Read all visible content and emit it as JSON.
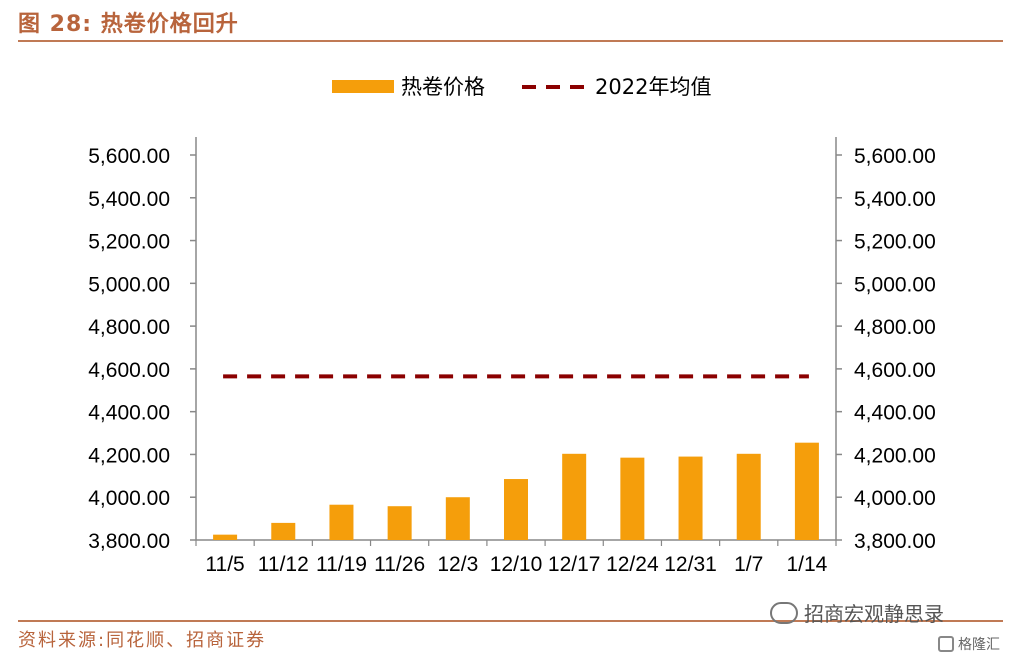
{
  "header": {
    "figure_title": "图 28:  热卷价格回升"
  },
  "footer": {
    "source": "资料来源:同花顺、招商证券",
    "watermark": "招商宏观静思录",
    "brand": "格隆汇"
  },
  "icons": {
    "wechat": "wechat-icon",
    "brand": "gelonghui-icon"
  },
  "colors": {
    "bar": "#f59e0b",
    "avg_line": "#8b0000",
    "title": "#b8643c"
  },
  "chart_data": {
    "type": "bar",
    "categories": [
      "11/5",
      "11/12",
      "11/19",
      "11/26",
      "12/3",
      "12/10",
      "12/17",
      "12/24",
      "12/31",
      "1/7",
      "1/14"
    ],
    "series": [
      {
        "name": "热卷价格",
        "type": "bar",
        "values": [
          3825,
          3880,
          3965,
          3958,
          4000,
          4085,
          4203,
          4185,
          4190,
          4203,
          4255
        ]
      },
      {
        "name": "2022年均值",
        "type": "line",
        "style": "dashed",
        "values": [
          4565,
          4565,
          4565,
          4565,
          4565,
          4565,
          4565,
          4565,
          4565,
          4565,
          4565
        ]
      }
    ],
    "ylim": [
      3800,
      5600
    ],
    "yticks": [
      "3,800.00",
      "4,000.00",
      "4,200.00",
      "4,400.00",
      "4,600.00",
      "4,800.00",
      "5,000.00",
      "5,200.00",
      "5,400.00",
      "5,600.00"
    ],
    "ytick_values": [
      3800,
      4000,
      4200,
      4400,
      4600,
      4800,
      5000,
      5200,
      5400,
      5600
    ],
    "secondary_y_axis": true,
    "legend_position": "top",
    "grid": false
  }
}
